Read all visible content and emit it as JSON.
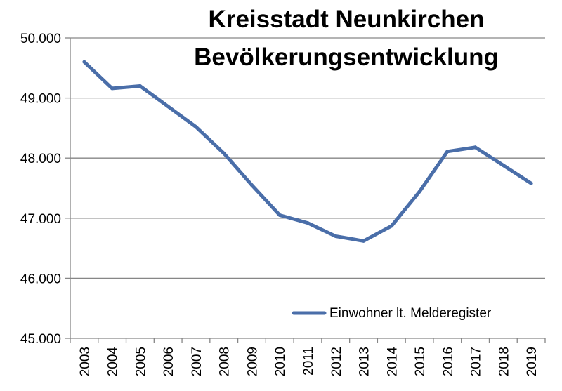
{
  "chart_data": {
    "type": "line",
    "title_lines": [
      "Kreisstadt Neunkirchen",
      "Bevölkerungsentwicklung"
    ],
    "categories": [
      "2003",
      "2004",
      "2005",
      "2006",
      "2007",
      "2008",
      "2009",
      "2010",
      "2011",
      "2012",
      "2013",
      "2014",
      "2015",
      "2016",
      "2017",
      "2018",
      "2019"
    ],
    "series": [
      {
        "name": "Einwohner lt. Melderegister",
        "color": "#4a6ea9",
        "values": [
          49600,
          49160,
          49200,
          48860,
          48520,
          48080,
          47550,
          47050,
          46920,
          46700,
          46620,
          46870,
          47440,
          48110,
          48180,
          47880,
          47580
        ]
      }
    ],
    "ylim": [
      45000,
      50000
    ],
    "yticks": [
      45000,
      46000,
      47000,
      48000,
      49000,
      50000
    ],
    "ytick_labels": [
      "45.000",
      "46.000",
      "47.000",
      "48.000",
      "49.000",
      "50.000"
    ],
    "grid": true,
    "legend_position": "bottom-right"
  }
}
